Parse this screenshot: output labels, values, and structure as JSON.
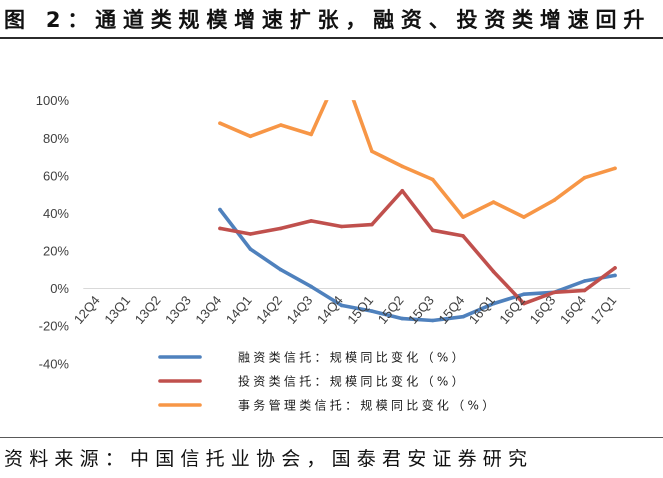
{
  "source": "资料来源：中国信托业协会，国泰君安证券研究",
  "chart_data": {
    "type": "line",
    "title": "图 2：通道类规模增速扩张，融资、投资类增速回升",
    "categories": [
      "12Q4",
      "13Q1",
      "13Q2",
      "13Q3",
      "13Q4",
      "14Q1",
      "14Q2",
      "14Q3",
      "14Q4",
      "15Q1",
      "15Q2",
      "15Q3",
      "15Q4",
      "16Q1",
      "16Q2",
      "16Q3",
      "16Q4",
      "17Q1"
    ],
    "ylim": [
      -40,
      100
    ],
    "yticks": [
      100,
      80,
      60,
      40,
      20,
      0,
      -20,
      -40
    ],
    "ytick_labels": [
      "100%",
      "80%",
      "60%",
      "40%",
      "20%",
      "0%",
      "-20%",
      "-40%"
    ],
    "grid": false,
    "legend_position": "bottom",
    "series": [
      {
        "name": "融资类信托：规模同比变化（%）",
        "color": "#4F81BD",
        "values": [
          null,
          null,
          null,
          null,
          42,
          21,
          10,
          1,
          -9,
          -12,
          -16,
          -17,
          -15,
          -8,
          -3,
          -2,
          4,
          7
        ]
      },
      {
        "name": "投资类信托：规模同比变化（%）",
        "color": "#C0504D",
        "values": [
          null,
          null,
          null,
          null,
          32,
          29,
          32,
          36,
          33,
          34,
          52,
          31,
          28,
          9,
          -8,
          -2,
          -1,
          11
        ]
      },
      {
        "name": "事务管理类信托：规模同比变化（%）",
        "color": "#F79646",
        "values": [
          null,
          null,
          null,
          null,
          88,
          81,
          87,
          82,
          118,
          73,
          65,
          58,
          38,
          46,
          38,
          47,
          59,
          64
        ]
      }
    ]
  }
}
